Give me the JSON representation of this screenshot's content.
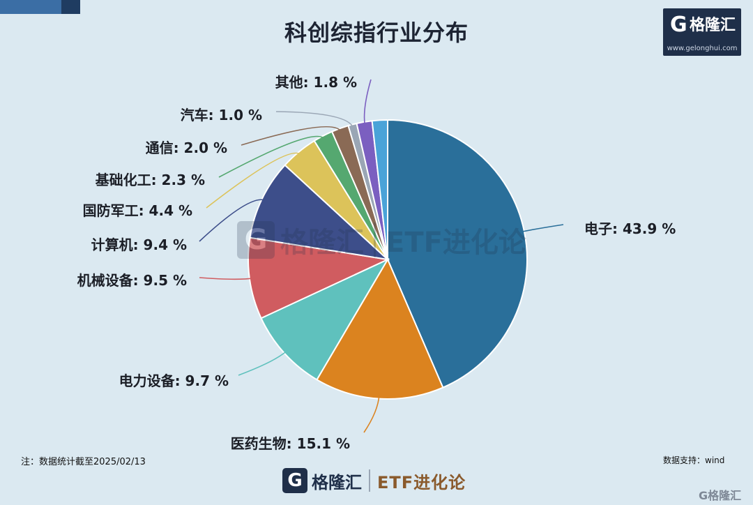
{
  "title": "科创综指行业分布",
  "brand": {
    "logo_letter": "G",
    "name": "格隆汇",
    "url": "www.gelonghui.com"
  },
  "watermark": {
    "logo_letter": "G",
    "name": "格隆汇",
    "tagline": "ETF进化论"
  },
  "note": "注：数据统计截至2025/02/13",
  "source": "数据支持：wind",
  "footer": {
    "logo_letter": "G",
    "name": "格隆汇",
    "tagline": "ETF进化论"
  },
  "corner_logo": "G格隆汇",
  "chart_data": {
    "type": "pie",
    "start_angle_deg": 0,
    "direction": "clockwise",
    "slices": [
      {
        "label": "电子: 43.9 %",
        "value": 43.9,
        "color": "#2a6f9a"
      },
      {
        "label": "医药生物: 15.1 %",
        "value": 15.1,
        "color": "#db831f"
      },
      {
        "label": "电力设备: 9.7 %",
        "value": 9.7,
        "color": "#5fc1bd"
      },
      {
        "label": "机械设备: 9.5 %",
        "value": 9.5,
        "color": "#d05c60"
      },
      {
        "label": "计算机: 9.4 %",
        "value": 9.4,
        "color": "#3d4e8a"
      },
      {
        "label": "国防军工: 4.4 %",
        "value": 4.4,
        "color": "#dcc35a"
      },
      {
        "label": "基础化工: 2.3 %",
        "value": 2.3,
        "color": "#55a870"
      },
      {
        "label": "通信: 2.0 %",
        "value": 2.0,
        "color": "#8a6a55"
      },
      {
        "label": "汽车: 1.0 %",
        "value": 1.0,
        "color": "#9aa6b5"
      },
      {
        "label": "其他: 1.8 %",
        "value": 1.8,
        "color": "#7b5fc0"
      },
      {
        "label": "",
        "value": 1.8,
        "color": "#4aa3d8"
      }
    ]
  }
}
